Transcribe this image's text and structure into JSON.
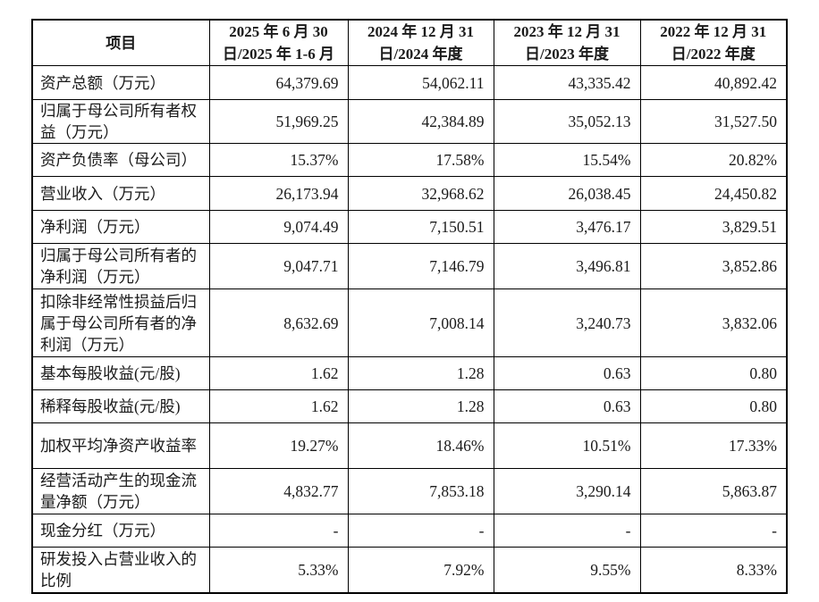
{
  "table": {
    "headers": [
      "项目",
      "2025 年 6 月 30 日/2025 年 1-6 月",
      "2024 年 12 月 31 日/2024 年度",
      "2023 年 12 月 31 日/2023 年度",
      "2022 年 12 月 31 日/2022 年度"
    ],
    "rows": [
      {
        "label": "资产总额（万元）",
        "values": [
          "64,379.69",
          "54,062.11",
          "43,335.42",
          "40,892.42"
        ]
      },
      {
        "label": "归属于母公司所有者权益（万元）",
        "values": [
          "51,969.25",
          "42,384.89",
          "35,052.13",
          "31,527.50"
        ]
      },
      {
        "label": "资产负债率（母公司）",
        "values": [
          "15.37%",
          "17.58%",
          "15.54%",
          "20.82%"
        ]
      },
      {
        "label": "营业收入（万元）",
        "values": [
          "26,173.94",
          "32,968.62",
          "26,038.45",
          "24,450.82"
        ]
      },
      {
        "label": "净利润（万元）",
        "values": [
          "9,074.49",
          "7,150.51",
          "3,476.17",
          "3,829.51"
        ]
      },
      {
        "label": "归属于母公司所有者的净利润（万元）",
        "values": [
          "9,047.71",
          "7,146.79",
          "3,496.81",
          "3,852.86"
        ]
      },
      {
        "label": "扣除非经常性损益后归属于母公司所有者的净利润（万元）",
        "values": [
          "8,632.69",
          "7,008.14",
          "3,240.73",
          "3,832.06"
        ]
      },
      {
        "label": "基本每股收益(元/股)",
        "values": [
          "1.62",
          "1.28",
          "0.63",
          "0.80"
        ]
      },
      {
        "label": "稀释每股收益(元/股)",
        "values": [
          "1.62",
          "1.28",
          "0.63",
          "0.80"
        ]
      },
      {
        "label": "加权平均净资产收益率",
        "values": [
          "19.27%",
          "18.46%",
          "10.51%",
          "17.33%"
        ]
      },
      {
        "label": "经营活动产生的现金流量净额（万元）",
        "values": [
          "4,832.77",
          "7,853.18",
          "3,290.14",
          "5,863.87"
        ]
      },
      {
        "label": "现金分红（万元）",
        "values": [
          "-",
          "-",
          "-",
          "-"
        ]
      },
      {
        "label": "研发投入占营业收入的比例",
        "values": [
          "5.33%",
          "7.92%",
          "9.55%",
          "8.33%"
        ]
      }
    ]
  }
}
